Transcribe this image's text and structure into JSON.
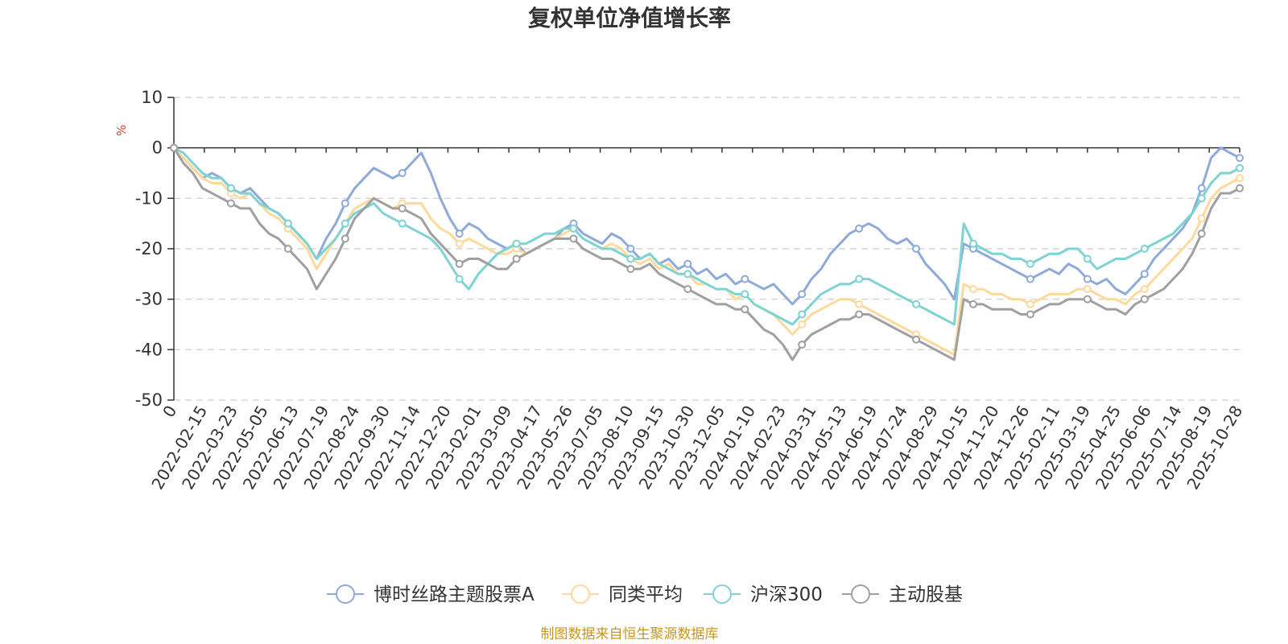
{
  "chart_data": {
    "type": "line",
    "title": "复权单位净值增长率",
    "ylabel": "%",
    "ylim": [
      -50,
      10
    ],
    "yticks": [
      10,
      0,
      -10,
      -20,
      -30,
      -40,
      -50
    ],
    "ytick_labels": [
      "10",
      "0",
      "-10",
      "-20",
      "-30",
      "-40",
      "-50"
    ],
    "xtick_labels": [
      "0",
      "2022-02-15",
      "2022-03-23",
      "2022-05-05",
      "2022-06-13",
      "2022-07-19",
      "2022-08-24",
      "2022-09-30",
      "2022-11-14",
      "2022-12-20",
      "2023-02-01",
      "2023-03-09",
      "2023-04-17",
      "2023-05-26",
      "2023-07-05",
      "2023-08-10",
      "2023-09-15",
      "2023-10-30",
      "2023-12-05",
      "2024-01-10",
      "2024-02-23",
      "2024-03-31",
      "2024-05-13",
      "2024-06-19",
      "2024-07-24",
      "2024-08-29",
      "2024-10-15",
      "2024-11-20",
      "2024-12-26",
      "2025-02-11",
      "2025-03-19",
      "2025-04-25",
      "2025-06-06",
      "2025-07-14",
      "2025-08-19",
      "2025-10-28"
    ],
    "legend_position": "bottom",
    "grid": true,
    "series": [
      {
        "name": "博时丝路主题股票A",
        "color": "#8eaadb",
        "values": [
          0,
          -2,
          -4,
          -6,
          -5,
          -6,
          -8,
          -9,
          -8,
          -10,
          -12,
          -13,
          -15,
          -17,
          -19,
          -22,
          -18,
          -15,
          -11,
          -8,
          -6,
          -4,
          -5,
          -6,
          -5,
          -3,
          -1,
          -5,
          -10,
          -14,
          -17,
          -15,
          -16,
          -18,
          -19,
          -20,
          -19,
          -21,
          -20,
          -19,
          -18,
          -16,
          -15,
          -17,
          -18,
          -19,
          -17,
          -18,
          -20,
          -22,
          -21,
          -23,
          -22,
          -24,
          -23,
          -25,
          -24,
          -26,
          -25,
          -27,
          -26,
          -27,
          -28,
          -27,
          -29,
          -31,
          -29,
          -26,
          -24,
          -21,
          -19,
          -17,
          -16,
          -15,
          -16,
          -18,
          -19,
          -18,
          -20,
          -23,
          -25,
          -27,
          -30,
          -19,
          -20,
          -21,
          -22,
          -23,
          -24,
          -25,
          -26,
          -25,
          -24,
          -25,
          -23,
          -24,
          -26,
          -27,
          -26,
          -28,
          -29,
          -27,
          -25,
          -22,
          -20,
          -18,
          -16,
          -13,
          -8,
          -2,
          0,
          -1,
          -2
        ]
      },
      {
        "name": "同类平均",
        "color": "#ffd99a",
        "values": [
          0,
          -2,
          -4,
          -6,
          -7,
          -7,
          -9,
          -10,
          -9,
          -11,
          -13,
          -14,
          -16,
          -18,
          -20,
          -24,
          -21,
          -18,
          -15,
          -12,
          -11,
          -10,
          -11,
          -12,
          -11,
          -11,
          -11,
          -14,
          -16,
          -17,
          -19,
          -18,
          -19,
          -20,
          -21,
          -21,
          -20,
          -21,
          -20,
          -19,
          -18,
          -17,
          -16,
          -18,
          -19,
          -20,
          -19,
          -20,
          -22,
          -23,
          -22,
          -24,
          -23,
          -25,
          -25,
          -27,
          -27,
          -28,
          -28,
          -30,
          -29,
          -31,
          -32,
          -33,
          -35,
          -37,
          -35,
          -33,
          -32,
          -31,
          -30,
          -30,
          -31,
          -32,
          -33,
          -34,
          -35,
          -36,
          -37,
          -38,
          -39,
          -40,
          -41,
          -27,
          -28,
          -28,
          -29,
          -29,
          -30,
          -30,
          -31,
          -30,
          -29,
          -29,
          -29,
          -28,
          -28,
          -29,
          -30,
          -30,
          -31,
          -29,
          -28,
          -26,
          -24,
          -22,
          -20,
          -18,
          -14,
          -10,
          -8,
          -7,
          -6
        ]
      },
      {
        "name": "沪深300",
        "color": "#7ed3d3",
        "values": [
          0,
          -1,
          -3,
          -5,
          -6,
          -6,
          -8,
          -9,
          -9,
          -11,
          -12,
          -13,
          -15,
          -17,
          -19,
          -22,
          -20,
          -18,
          -15,
          -13,
          -12,
          -11,
          -13,
          -14,
          -15,
          -16,
          -17,
          -18,
          -20,
          -23,
          -26,
          -28,
          -25,
          -23,
          -21,
          -20,
          -19,
          -19,
          -18,
          -17,
          -17,
          -16,
          -16,
          -18,
          -19,
          -20,
          -20,
          -21,
          -22,
          -22,
          -21,
          -23,
          -24,
          -25,
          -25,
          -26,
          -27,
          -28,
          -28,
          -29,
          -29,
          -31,
          -32,
          -33,
          -34,
          -35,
          -33,
          -31,
          -29,
          -28,
          -27,
          -27,
          -26,
          -26,
          -27,
          -28,
          -29,
          -30,
          -31,
          -32,
          -33,
          -34,
          -35,
          -15,
          -19,
          -20,
          -21,
          -21,
          -22,
          -22,
          -23,
          -22,
          -21,
          -21,
          -20,
          -20,
          -22,
          -24,
          -23,
          -22,
          -22,
          -21,
          -20,
          -19,
          -18,
          -17,
          -15,
          -13,
          -10,
          -7,
          -5,
          -5,
          -4
        ]
      },
      {
        "name": "主动股基",
        "color": "#a0a0a0",
        "values": [
          0,
          -3,
          -5,
          -8,
          -9,
          -10,
          -11,
          -12,
          -12,
          -15,
          -17,
          -18,
          -20,
          -22,
          -24,
          -28,
          -25,
          -22,
          -18,
          -14,
          -12,
          -10,
          -11,
          -12,
          -12,
          -13,
          -14,
          -17,
          -19,
          -21,
          -23,
          -22,
          -22,
          -23,
          -24,
          -24,
          -22,
          -21,
          -20,
          -19,
          -18,
          -18,
          -18,
          -20,
          -21,
          -22,
          -22,
          -23,
          -24,
          -24,
          -23,
          -25,
          -26,
          -27,
          -28,
          -29,
          -30,
          -31,
          -31,
          -32,
          -32,
          -34,
          -36,
          -37,
          -39,
          -42,
          -39,
          -37,
          -36,
          -35,
          -34,
          -34,
          -33,
          -33,
          -34,
          -35,
          -36,
          -37,
          -38,
          -39,
          -40,
          -41,
          -42,
          -30,
          -31,
          -31,
          -32,
          -32,
          -32,
          -33,
          -33,
          -32,
          -31,
          -31,
          -30,
          -30,
          -30,
          -31,
          -32,
          -32,
          -33,
          -31,
          -30,
          -29,
          -28,
          -26,
          -24,
          -21,
          -17,
          -12,
          -9,
          -9,
          -8
        ]
      }
    ]
  },
  "source_note": "制图数据来自恒生聚源数据库"
}
